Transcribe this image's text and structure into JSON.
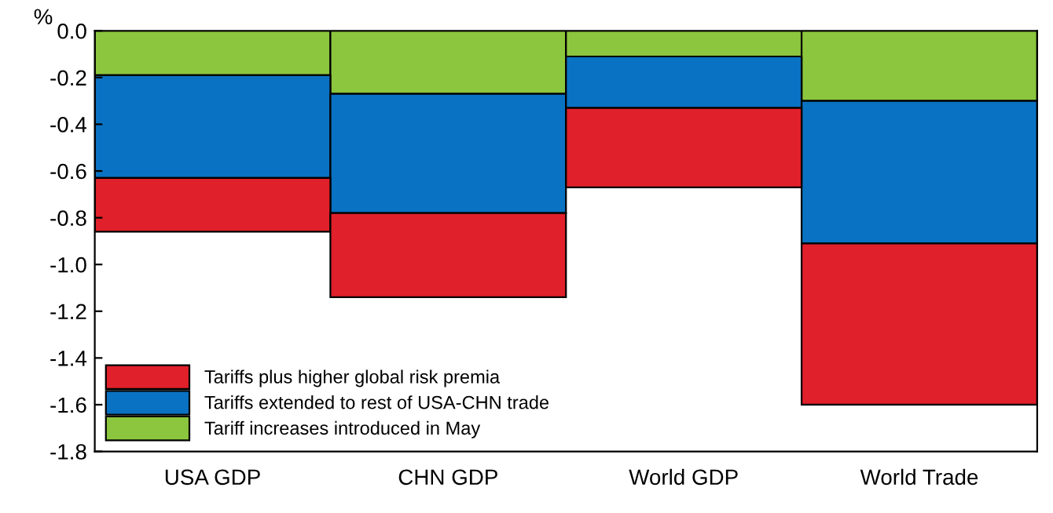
{
  "chart_data": {
    "type": "bar",
    "stacked": true,
    "ylabel": "%",
    "categories": [
      "USA GDP",
      "CHN GDP",
      "World GDP",
      "World Trade"
    ],
    "series": [
      {
        "name": "Tariff increases introduced in May",
        "color": "#8cc63e",
        "values": [
          -0.19,
          -0.27,
          -0.11,
          -0.3
        ]
      },
      {
        "name": "Tariffs extended to rest of USA-CHN trade",
        "color": "#0a72c2",
        "values": [
          -0.44,
          -0.51,
          -0.22,
          -0.61
        ]
      },
      {
        "name": "Tariffs plus higher global risk premia",
        "color": "#e0202a",
        "values": [
          -0.23,
          -0.36,
          -0.34,
          -0.69
        ]
      }
    ],
    "ylim": [
      -1.8,
      0.0
    ],
    "yticks": [
      -1.8,
      -1.6,
      -1.4,
      -1.2,
      {
        "value": -1,
        "label": "-1.0"
      },
      -0.8,
      -0.6,
      -0.4,
      -0.2,
      {
        "value": 0,
        "label": "0.0"
      }
    ],
    "grid": false,
    "legend": "bottom left"
  }
}
